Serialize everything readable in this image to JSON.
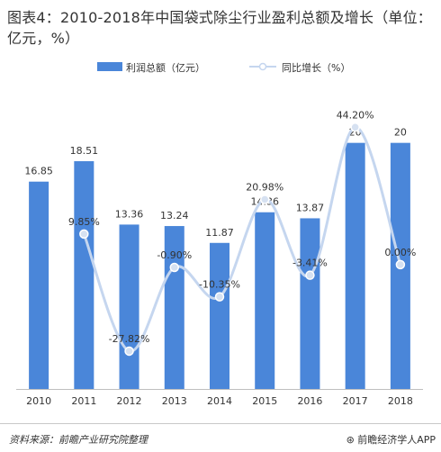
{
  "title": "图表4：2010-2018年中国袋式除尘行业盈利总额及增长（单位：亿元，%）",
  "legend": {
    "bar_label": "利润总额（亿元）",
    "line_label": "同比增长（%）"
  },
  "footer": {
    "source": "资料来源：前瞻产业研究院整理",
    "brand": "前瞻经济学人APP"
  },
  "colors": {
    "bar": "#4a86d9",
    "line": "#c5d6ef",
    "marker": "#d6e1f1",
    "text": "#333333"
  },
  "chart_data": {
    "type": "bar",
    "categories": [
      "2010",
      "2011",
      "2012",
      "2013",
      "2014",
      "2015",
      "2016",
      "2017",
      "2018"
    ],
    "series": [
      {
        "name": "利润总额（亿元）",
        "type": "bar",
        "values": [
          16.85,
          18.51,
          13.36,
          13.24,
          11.87,
          14.36,
          13.87,
          20,
          20
        ],
        "labels": [
          "16.85",
          "18.51",
          "13.36",
          "13.24",
          "11.87",
          "14.36",
          "13.87",
          "20",
          "20"
        ]
      },
      {
        "name": "同比增长（%）",
        "type": "line",
        "smooth": true,
        "values": [
          null,
          9.85,
          -27.82,
          -0.9,
          -10.35,
          20.98,
          -3.41,
          44.2,
          0.0
        ],
        "labels": [
          "",
          "9.85%",
          "-27.82%",
          "-0.90%",
          "-10.35%",
          "20.98%",
          "-3.41%",
          "44.20%",
          "0.00%"
        ]
      }
    ],
    "bar_axis": {
      "min": 0,
      "max": 24
    },
    "line_axis": {
      "min": -40,
      "max": 55
    },
    "grid": false,
    "legend_position": "top-center"
  }
}
